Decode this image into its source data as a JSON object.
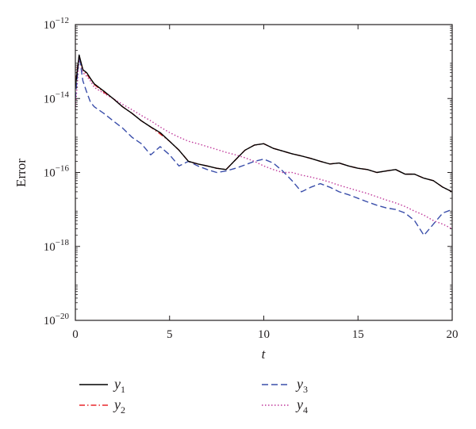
{
  "chart_data": {
    "type": "line",
    "title": "",
    "xlabel": "t",
    "ylabel": "Error",
    "x_scale": "linear",
    "y_scale": "log",
    "xlim": [
      0,
      20
    ],
    "ylim": [
      1e-20,
      1e-12
    ],
    "x_ticks": [
      0,
      5,
      10,
      15,
      20
    ],
    "x_tick_labels": [
      "0",
      "5",
      "10",
      "15",
      "20"
    ],
    "y_ticks": [
      1e-20,
      1e-18,
      1e-16,
      1e-14,
      1e-12
    ],
    "y_tick_labels": [
      {
        "base": "10",
        "exp": "−20"
      },
      {
        "base": "10",
        "exp": "−18"
      },
      {
        "base": "10",
        "exp": "−16"
      },
      {
        "base": "10",
        "exp": "−14"
      },
      {
        "base": "10",
        "exp": "−12"
      }
    ],
    "grid": false,
    "legend_position": "below",
    "series": [
      {
        "name": "y1",
        "label": {
          "main": "y",
          "sub": "1"
        },
        "color": "#000000",
        "dash": "solid",
        "x": [
          0,
          0.2,
          0.4,
          0.6,
          0.8,
          1,
          1.5,
          2,
          2.5,
          3,
          3.5,
          4,
          4.5,
          5,
          5.5,
          6,
          6.5,
          7,
          7.5,
          8,
          8.5,
          9,
          9.5,
          10,
          10.5,
          11,
          11.5,
          12,
          12.5,
          13,
          13.5,
          14,
          14.5,
          15,
          15.5,
          16,
          16.5,
          17,
          17.5,
          18,
          18.5,
          19,
          19.5,
          20
        ],
        "y": [
          2e-14,
          1.5e-13,
          6e-14,
          5e-14,
          3.5e-14,
          2.5e-14,
          1.6e-14,
          1e-14,
          6e-15,
          4e-15,
          2.5e-15,
          1.7e-15,
          1.2e-15,
          7e-16,
          4e-16,
          2e-16,
          1.7e-16,
          1.5e-16,
          1.3e-16,
          1.2e-16,
          2.2e-16,
          4e-16,
          5.5e-16,
          6e-16,
          4.5e-16,
          3.8e-16,
          3.2e-16,
          2.8e-16,
          2.4e-16,
          2e-16,
          1.7e-16,
          1.8e-16,
          1.5e-16,
          1.3e-16,
          1.2e-16,
          1e-16,
          1.1e-16,
          1.2e-16,
          9e-17,
          9e-17,
          7e-17,
          6e-17,
          4e-17,
          3e-17
        ]
      },
      {
        "name": "y2",
        "label": {
          "main": "y",
          "sub": "2"
        },
        "color": "#e8262b",
        "dash": "dashdot",
        "x": [
          0,
          0.2,
          0.4,
          0.6,
          0.8,
          1,
          1.5,
          2,
          2.5,
          3,
          3.5,
          4,
          4.5,
          5,
          5.5,
          6,
          6.5,
          7,
          7.5,
          8,
          8.5,
          9,
          9.5,
          10,
          10.5,
          11,
          11.5,
          12,
          12.5,
          13,
          13.5,
          14,
          14.5,
          15,
          15.5,
          16,
          16.5,
          17,
          17.5,
          18,
          18.5,
          19,
          19.5,
          20
        ],
        "y": [
          3e-14,
          1.4e-13,
          6e-14,
          4.5e-14,
          3.4e-14,
          2.4e-14,
          1.5e-14,
          1e-14,
          6e-15,
          4e-15,
          2.5e-15,
          1.7e-15,
          1.1e-15,
          7e-16,
          4e-16,
          2e-16,
          1.7e-16,
          1.5e-16,
          1.3e-16,
          1.2e-16,
          2.2e-16,
          4e-16,
          5.5e-16,
          6e-16,
          4.5e-16,
          3.8e-16,
          3.2e-16,
          2.8e-16,
          2.4e-16,
          2e-16,
          1.7e-16,
          1.8e-16,
          1.5e-16,
          1.3e-16,
          1.2e-16,
          1e-16,
          1.1e-16,
          1.2e-16,
          9e-17,
          9e-17,
          7e-17,
          6e-17,
          4e-17,
          3e-17
        ]
      },
      {
        "name": "y3",
        "label": {
          "main": "y",
          "sub": "3"
        },
        "color": "#3a4eaa",
        "dash": "dashed",
        "x": [
          0,
          0.2,
          0.4,
          0.6,
          0.8,
          1,
          1.5,
          2,
          2.5,
          3,
          3.5,
          4,
          4.5,
          5,
          5.5,
          6,
          6.5,
          7,
          7.5,
          8,
          8.5,
          9,
          9.5,
          10,
          10.5,
          11,
          11.5,
          12,
          12.5,
          13,
          13.5,
          14,
          14.5,
          15,
          15.5,
          16,
          16.5,
          17,
          17.5,
          18,
          18.5,
          19,
          19.5,
          20
        ],
        "y": [
          1e-14,
          1.5e-13,
          3e-14,
          1.5e-14,
          8e-15,
          6e-15,
          4e-15,
          2.5e-15,
          1.6e-15,
          9e-16,
          6e-16,
          3e-16,
          5e-16,
          3e-16,
          1.5e-16,
          2e-16,
          1.5e-16,
          1.2e-16,
          1e-16,
          1.1e-16,
          1.3e-16,
          1.6e-16,
          2e-16,
          2.3e-16,
          1.8e-16,
          1.1e-16,
          6e-17,
          3e-17,
          4e-17,
          5e-17,
          4e-17,
          3e-17,
          2.5e-17,
          2e-17,
          1.6e-17,
          1.3e-17,
          1.1e-17,
          1e-17,
          8e-18,
          5e-18,
          2e-18,
          4e-18,
          8e-18,
          1e-17
        ]
      },
      {
        "name": "y4",
        "label": {
          "main": "y",
          "sub": "4"
        },
        "color": "#c0399b",
        "dash": "dotted",
        "x": [
          0,
          0.2,
          0.4,
          0.6,
          0.8,
          1,
          1.5,
          2,
          2.5,
          3,
          3.5,
          4,
          4.5,
          5,
          5.5,
          6,
          6.5,
          7,
          7.5,
          8,
          8.5,
          9,
          9.5,
          10,
          10.5,
          11,
          11.5,
          12,
          12.5,
          13,
          13.5,
          14,
          14.5,
          15,
          15.5,
          16,
          16.5,
          17,
          17.5,
          18,
          18.5,
          19,
          19.5,
          20
        ],
        "y": [
          5e-15,
          1.2e-13,
          5e-14,
          4e-14,
          3e-14,
          2e-14,
          1.4e-14,
          1e-14,
          7e-15,
          5e-15,
          3.5e-15,
          2.5e-15,
          1.7e-15,
          1.2e-15,
          9e-16,
          7e-16,
          6e-16,
          5e-16,
          4.2e-16,
          3.5e-16,
          3e-16,
          2.5e-16,
          2e-16,
          1.5e-16,
          1.2e-16,
          1e-16,
          1e-16,
          8.5e-17,
          7.5e-17,
          6.5e-17,
          5.5e-17,
          4.5e-17,
          3.8e-17,
          3.2e-17,
          2.7e-17,
          2.2e-17,
          1.8e-17,
          1.5e-17,
          1.2e-17,
          9e-18,
          7e-18,
          5e-18,
          4e-18,
          3e-18
        ]
      }
    ]
  }
}
